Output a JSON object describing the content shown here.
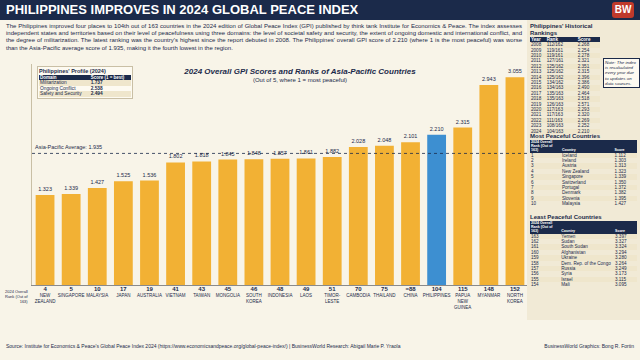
{
  "title": "PHILIPPINES IMPROVES IN 2024 GLOBAL PEACE INDEX",
  "logo": "BW",
  "intro": "The Philippines improved four places to 104th out of 163 countries in the 2024 edition of Global Peace Index (GPI) published by think tank Institute for Economics & Peace. The index assesses independent states and territories based on their level of peacefulness using three domains: the level of societal safety and security, the extent of ongoing domestic and international conflict, and the degree of militarization. The latest ranking was the country's highest since the report debuted in 2008. The Philippines' overall GPI score of 2.210 (where 1 is the most peaceful) was worse than the Asia-Pacific average score of 1.935, making it the fourth lowest in the region.",
  "profile": {
    "title": "Philippines' Profile (2024)",
    "headers": [
      "Domain",
      "Score (1 = best)"
    ],
    "rows": [
      [
        "Militarization",
        "1.737"
      ],
      [
        "Ongoing Conflict",
        "2.538"
      ],
      [
        "Safety and Security",
        "2.494"
      ]
    ]
  },
  "chart_data": {
    "type": "bar",
    "title": "2024 Overall GPI Scores and Ranks of Asia-Pacific Countries",
    "subtitle": "(Out of 5, where 1 = most peaceful)",
    "categories": [
      "NEW ZEALAND",
      "SINGAPORE",
      "MALAYSIA",
      "JAPAN",
      "AUSTRALIA",
      "VIETNAM",
      "TAIWAN",
      "MONGOLIA",
      "SOUTH KOREA",
      "INDONESIA",
      "LAOS",
      "TIMOR-LESTE",
      "CAMBODIA",
      "THAILAND",
      "CHINA",
      "PHILIPPINES",
      "PAPUA NEW GUINEA",
      "MYANMAR",
      "NORTH KOREA"
    ],
    "values": [
      1.323,
      1.339,
      1.427,
      1.525,
      1.536,
      1.802,
      1.818,
      1.845,
      1.848,
      1.857,
      1.861,
      1.882,
      2.028,
      2.048,
      2.101,
      2.21,
      2.315,
      2.943,
      3.055
    ],
    "value_labels": [
      "1.323",
      "1.339",
      "1.427",
      "1.525",
      "1.536",
      "1.802",
      "1.818",
      "1.845",
      "1.848",
      "1.857",
      "1.861",
      "1.882",
      "2.028",
      "2.048",
      "2.101",
      "2.210",
      "2.315",
      "2.943",
      "3.055"
    ],
    "colors": [
      "#f2b134",
      "#f2b134",
      "#f2b134",
      "#f2b134",
      "#f2b134",
      "#f2b134",
      "#f2b134",
      "#f2b134",
      "#f2b134",
      "#f2b134",
      "#f2b134",
      "#f2b134",
      "#f2b134",
      "#f2b134",
      "#f2b134",
      "#3d8fd1",
      "#f2b134",
      "#f2b134",
      "#f2b134"
    ],
    "ranks": [
      "4",
      "5",
      "10",
      "17",
      "19",
      "41",
      "43",
      "45",
      "46",
      "48",
      "49",
      "51",
      "70",
      "75",
      "=88",
      "104",
      "115",
      "148",
      "152"
    ],
    "rank_label": "2024 Overall Rank (Out of 163)",
    "average": {
      "label": "Asia-Pacific Average: 1.935",
      "value": 1.935
    },
    "ylim": [
      0,
      3.25
    ],
    "data_labels": true,
    "tick_labels": "x",
    "grid": false
  },
  "historical": {
    "title": "Philippines' Historical Rankings",
    "headers": [
      "Year",
      "Rank",
      "Score"
    ],
    "rows": [
      [
        "2008",
        "112/162",
        "2.268"
      ],
      [
        "2009",
        "119/161",
        "2.254"
      ],
      [
        "2010",
        "119/161",
        "2.278"
      ],
      [
        "2011",
        "127/161",
        "2.321"
      ],
      [
        "2012",
        "125/162",
        "2.351"
      ],
      [
        "2013",
        "125/162",
        "2.315"
      ],
      [
        "2014",
        "125/162",
        "2.396"
      ],
      [
        "2015",
        "134/162",
        "2.386"
      ],
      [
        "2016",
        "134/163",
        "2.490"
      ],
      [
        "2017",
        "135/163",
        "2.464"
      ],
      [
        "2018",
        "135/163",
        "2.518"
      ],
      [
        "2019",
        "126/163",
        "2.571"
      ],
      [
        "2020",
        "117/163",
        "2.293"
      ],
      [
        "2021",
        "117/163",
        "2.320"
      ],
      [
        "2022",
        "111/163",
        "2.269"
      ],
      [
        "2023",
        "108/163",
        "2.252"
      ],
      [
        "2024",
        "104/163",
        "2.210"
      ]
    ],
    "note": "Note: The index is recalculated every year due to updates on data sources."
  },
  "most_peaceful": {
    "title": "Most Peaceful Countries",
    "headers": [
      "2024 Overall Rank (Out of 163)",
      "Country",
      "Score"
    ],
    "rows": [
      [
        "1",
        "Iceland",
        "1.112"
      ],
      [
        "2",
        "Ireland",
        "1.303"
      ],
      [
        "3",
        "Austria",
        "1.313"
      ],
      [
        "4",
        "New Zealand",
        "1.323"
      ],
      [
        "5",
        "Singapore",
        "1.339"
      ],
      [
        "6",
        "Switzerland",
        "1.350"
      ],
      [
        "7",
        "Portugal",
        "1.372"
      ],
      [
        "8",
        "Denmark",
        "1.382"
      ],
      [
        "9",
        "Slovenia",
        "1.395"
      ],
      [
        "10",
        "Malaysia",
        "1.427"
      ]
    ]
  },
  "least_peaceful": {
    "title": "Least Peaceful Countries",
    "headers": [
      "2024 Overall Rank (Out of 163)",
      "Country",
      "Score"
    ],
    "rows": [
      [
        "163",
        "Yemen",
        "3.397"
      ],
      [
        "162",
        "Sudan",
        "3.327"
      ],
      [
        "161",
        "South Sudan",
        "3.324"
      ],
      [
        "160",
        "Afghanistan",
        "3.294"
      ],
      [
        "159",
        "Ukraine",
        "3.280"
      ],
      [
        "158",
        "Dem. Rep. of the Congo",
        "3.264"
      ],
      [
        "157",
        "Russia",
        "3.249"
      ],
      [
        "156",
        "Syria",
        "3.173"
      ],
      [
        "155",
        "Israel",
        "3.115"
      ],
      [
        "154",
        "Mali",
        "3.095"
      ]
    ]
  },
  "source": "Source: Institute for Economics & Peace's Global Peace Index 2024 (https://www.economicsandpeace.org/global-peace-index/) | BusinessWorld Research: Abigail Marie P. Yraola",
  "credit": "BusinessWorld Graphics: Bong R. Fortin"
}
